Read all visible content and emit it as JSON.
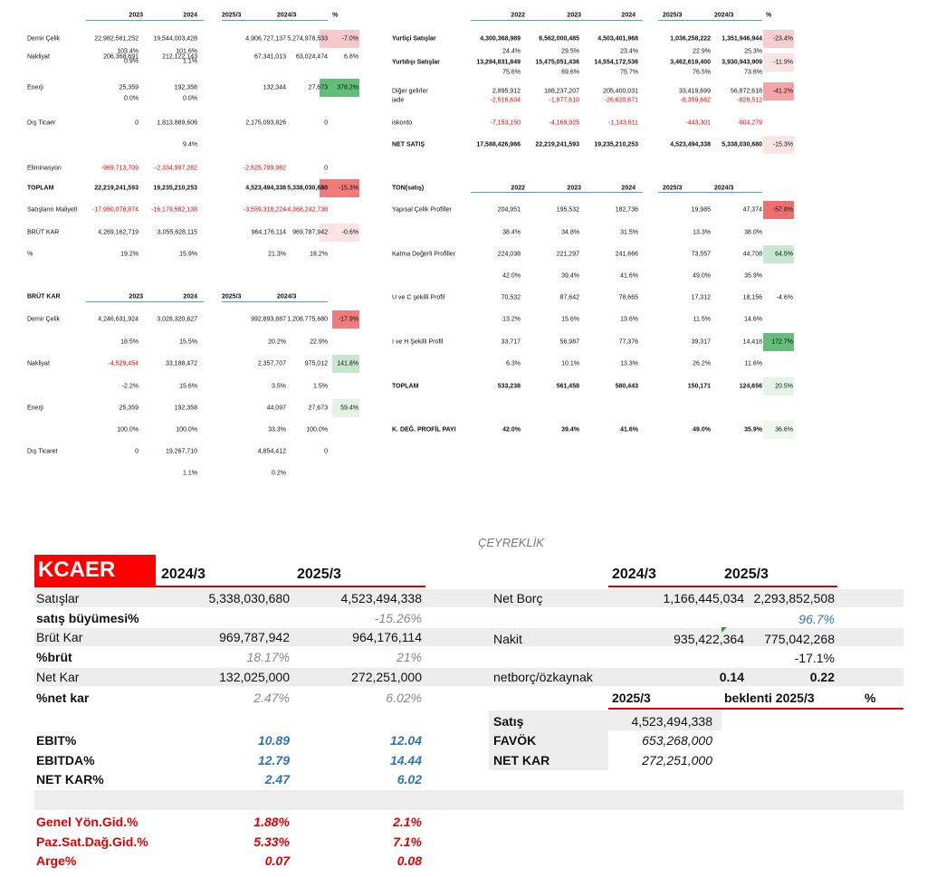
{
  "top_left": {
    "header": [
      null,
      "2023",
      "2024",
      "2025/3",
      "2024/3",
      "%"
    ],
    "rows": [
      [
        "Demir Çelik",
        "22,982,561,252",
        "19,544,003,428",
        "4,906,727,137",
        "5,274,978,533",
        "-7.0%"
      ],
      [
        null,
        "103.4%",
        "101.6%",
        null,
        null,
        null
      ],
      [
        "Nakliyat",
        "206,368,691",
        "212,122,143",
        "67,341,013",
        "63,024,474",
        "6.8%"
      ],
      [
        null,
        "0.9%",
        "1.1%",
        null,
        null,
        null
      ],
      [
        "Enerji",
        "25,359",
        "192,358",
        "132,344",
        "27,673",
        "378.2%"
      ],
      [
        null,
        "0.0%",
        "0.0%",
        null,
        null,
        null
      ],
      [
        "Dış Ticaer",
        "0",
        "1,813,889,606",
        "2,175,093,826",
        "0",
        null
      ],
      [
        null,
        null,
        "9.4%",
        null,
        null,
        null
      ],
      [
        "Eliminasyon",
        "-969,713,709",
        "-2,334,997,282",
        "-2,625,799,982",
        "0",
        null
      ],
      [
        "TOPLAM",
        "22,219,241,593",
        "19,235,210,253",
        "4,523,494,338",
        "5,338,030,680",
        "-15.3%"
      ],
      [
        "Satışların Maliyeti",
        "-17,950,078,874",
        "-16,179,582,138",
        "-3,559,318,224",
        "-4,368,242,738",
        null
      ],
      [
        "BRÜT KAR",
        "4,269,162,719",
        "3,055,628,115",
        "964,176,114",
        "969,787,942",
        "-0.6%"
      ],
      [
        "%",
        "19.2%",
        "15.9%",
        "21.3%",
        "18.2%",
        null
      ]
    ]
  },
  "gross_profit": {
    "header": [
      "BRÜT KAR",
      "2023",
      "2024",
      "2025/3",
      "2024/3",
      null
    ],
    "rows": [
      [
        "Demir Çelik",
        "4,246,631,924",
        "3,028,320,627",
        "992,893,887",
        "1,208,775,680",
        "-17.9%"
      ],
      [
        null,
        "18.5%",
        "15.5%",
        "20.2%",
        "22.9%",
        null
      ],
      [
        "Nakliyat",
        "-4,529,454",
        "33,188,472",
        "2,357,707",
        "975,012",
        "141.8%"
      ],
      [
        null,
        "-2.2%",
        "15.6%",
        "3.5%",
        "1.5%",
        null
      ],
      [
        "Enerji",
        "25,359",
        "192,358",
        "44,097",
        "27,673",
        "59.4%"
      ],
      [
        null,
        "100.0%",
        "100.0%",
        "33.3%",
        "100.0%",
        null
      ],
      [
        "Dış Ticaret",
        "0",
        "19,267,710",
        "4,854,412",
        "0",
        null
      ],
      [
        null,
        null,
        "1.1%",
        "0.2%",
        null,
        null
      ]
    ]
  },
  "sales": {
    "header": [
      null,
      "2022",
      "2023",
      "2024",
      "2025/3",
      "2024/3",
      "%"
    ],
    "rows": [
      [
        "Yurtiçi Satışlar",
        "4,300,368,989",
        "6,562,000,485",
        "4,503,401,968",
        "1,036,258,222",
        "1,351,946,944",
        "-23.4%"
      ],
      [
        null,
        "24.4%",
        "29.5%",
        "23.4%",
        "22.9%",
        "25.3%",
        null
      ],
      [
        "Yurtdışı Satışlar",
        "13,294,831,849",
        "15,475,051,436",
        "14,554,172,536",
        "3,462,619,400",
        "3,930,943,909",
        "-11.9%"
      ],
      [
        null,
        "75.6%",
        "69.6%",
        "75.7%",
        "76.5%",
        "73.6%",
        null
      ],
      [
        "Diğer gelirler",
        "2,895,912",
        "188,237,207",
        "205,400,031",
        "33,419,699",
        "56,872,618",
        "-41.2%"
      ],
      [
        "iade",
        "-2,516,634",
        "-1,877,610",
        "-26,620,671",
        "-8,359,682",
        "-828,512",
        null
      ],
      [
        "iskonto",
        "-7,153,150",
        "-4,169,925",
        "-1,143,611",
        "-443,301",
        "-904,279",
        null
      ],
      [
        "NET SATIŞ",
        "17,588,426,966",
        "22,219,241,593",
        "19,235,210,253",
        "4,523,494,338",
        "5,338,030,680",
        "-15.3%"
      ]
    ]
  },
  "tonnage": {
    "header": [
      "TON(satış)",
      "2022",
      "2023",
      "2024",
      "2025/3",
      "2024/3",
      null
    ],
    "rows": [
      [
        "Yapısal Çelik Profiller",
        "204,951",
        "195,532",
        "182,736",
        "19,985",
        "47,374",
        "-57.8%"
      ],
      [
        null,
        "38.4%",
        "34.8%",
        "31.5%",
        "13.3%",
        "38.0%",
        null
      ],
      [
        "Katma Değerli Profiller",
        "224,038",
        "221,297",
        "241,666",
        "73,557",
        "44,708",
        "64.5%"
      ],
      [
        null,
        "42.0%",
        "39.4%",
        "41.6%",
        "49.0%",
        "35.9%",
        null
      ],
      [
        "U ve C şekilli Profil",
        "70,532",
        "87,642",
        "78,665",
        "17,312",
        "18,156",
        "-4.6%"
      ],
      [
        null,
        "13.2%",
        "15.6%",
        "13.6%",
        "11.5%",
        "14.6%",
        null
      ],
      [
        "I ve H Şekilli Profil",
        "33,717",
        "56,987",
        "77,376",
        "39,317",
        "14,418",
        "172.7%"
      ],
      [
        null,
        "6.3%",
        "10.1%",
        "13.3%",
        "26.2%",
        "11.6%",
        null
      ],
      [
        "TOPLAM",
        "533,238",
        "561,458",
        "580,443",
        "150,171",
        "124,656",
        "20.5%"
      ],
      [
        "K. DEĞ. PROFİL PAYI",
        "42.0%",
        "39.4%",
        "41.6%",
        "49.0%",
        "35.9%",
        "36.6%"
      ]
    ]
  },
  "quarterly": {
    "title": "ÇEYREKLİK",
    "left": {
      "ticker": "KCAER",
      "header": [
        null,
        "2024/3",
        "2025/3"
      ],
      "rows": [
        [
          "Satışlar",
          "5,338,030,680",
          "4,523,494,338"
        ],
        [
          "satış büyümesi%",
          null,
          "-15.26%"
        ],
        [
          "Brüt Kar",
          "969,787,942",
          "964,176,114"
        ],
        [
          "%brüt",
          "18.17%",
          "21%"
        ],
        [
          "Net Kar",
          "132,025,000",
          "272,251,000"
        ],
        [
          "%net kar",
          "2.47%",
          "6.02%"
        ],
        [
          "EBIT%",
          "10.89",
          "12.04"
        ],
        [
          "EBITDA%",
          "12.79",
          "14.44"
        ],
        [
          "NET KAR%",
          "2.47",
          "6.02"
        ],
        [
          "Genel Yön.Gid.%",
          "1.88%",
          "2.1%"
        ],
        [
          "Paz.Sat.Dağ.Gid.%",
          "5.33%",
          "7.1%"
        ],
        [
          "Arge%",
          "0.07",
          "0.08"
        ]
      ]
    },
    "right": {
      "header": [
        null,
        "2024/3",
        "2025/3"
      ],
      "rows": [
        [
          "Net Borç",
          "1,166,445,034",
          "2,293,852,508"
        ],
        [
          null,
          null,
          "96.7%"
        ],
        [
          "Nakit",
          "935,422,364",
          "775,042,268"
        ],
        [
          null,
          null,
          "-17.1%"
        ],
        [
          "netborç/özkaynak",
          "0.14",
          "0.22"
        ]
      ]
    },
    "forecast": {
      "header": [
        "2025/3",
        "beklenti 2025/3",
        "%"
      ],
      "rows": [
        [
          "Satış",
          "4,523,494,338"
        ],
        [
          "FAVÖK",
          "653,268,000"
        ],
        [
          "NET KAR",
          "272,251,000"
        ]
      ]
    }
  }
}
